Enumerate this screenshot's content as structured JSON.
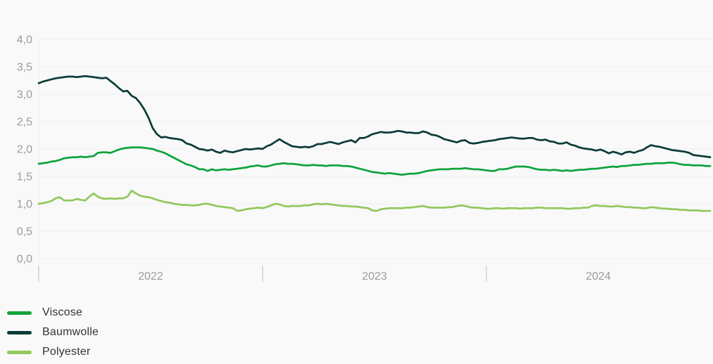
{
  "chart": {
    "background": "#f9f9f9",
    "grid_color": "#eeeeee",
    "axis_line_color": "#ececec",
    "tick_color": "#bdbdbd",
    "axis_label_color": "#9b9b9b",
    "y_tick_labels": [
      "4,0",
      "3,5",
      "3,0",
      "2,5",
      "2,0",
      "1,5",
      "1,0",
      "0,5",
      "0,0"
    ],
    "x_tick_labels": [
      "2022",
      "2023",
      "2024"
    ]
  },
  "legend": {
    "items": [
      {
        "label": "Viscose",
        "color": "#10a33c"
      },
      {
        "label": "Baumwolle",
        "color": "#0c3c38"
      },
      {
        "label": "Polyester",
        "color": "#92c85e"
      }
    ]
  },
  "chart_data": {
    "type": "line",
    "title": "",
    "xlabel": "",
    "ylabel": "",
    "ylim": [
      0.0,
      4.0
    ],
    "y_step": 0.5,
    "x_range": [
      2022.0,
      2025.0
    ],
    "x_tick_positions": [
      2022,
      2023,
      2024
    ],
    "x_tick_label_alignment": "centered-within-year",
    "x_sampling": "values evenly spaced over x_range",
    "grid": "horizontal-only",
    "legend_position": "bottom-left",
    "series": [
      {
        "name": "Viscose",
        "color": "#10a33c",
        "values": [
          1.73,
          1.74,
          1.75,
          1.77,
          1.78,
          1.8,
          1.83,
          1.84,
          1.85,
          1.85,
          1.86,
          1.85,
          1.86,
          1.87,
          1.93,
          1.94,
          1.94,
          1.93,
          1.96,
          1.99,
          2.01,
          2.02,
          2.03,
          2.03,
          2.03,
          2.02,
          2.01,
          2.0,
          1.97,
          1.95,
          1.92,
          1.88,
          1.84,
          1.8,
          1.76,
          1.72,
          1.7,
          1.67,
          1.63,
          1.63,
          1.6,
          1.63,
          1.61,
          1.62,
          1.63,
          1.62,
          1.63,
          1.64,
          1.65,
          1.66,
          1.68,
          1.69,
          1.7,
          1.68,
          1.68,
          1.7,
          1.72,
          1.73,
          1.74,
          1.73,
          1.73,
          1.72,
          1.71,
          1.7,
          1.7,
          1.71,
          1.7,
          1.7,
          1.69,
          1.7,
          1.7,
          1.7,
          1.69,
          1.69,
          1.68,
          1.66,
          1.64,
          1.62,
          1.6,
          1.58,
          1.57,
          1.56,
          1.55,
          1.56,
          1.55,
          1.54,
          1.53,
          1.54,
          1.55,
          1.55,
          1.56,
          1.58,
          1.6,
          1.61,
          1.62,
          1.63,
          1.63,
          1.63,
          1.64,
          1.64,
          1.64,
          1.65,
          1.64,
          1.63,
          1.63,
          1.62,
          1.61,
          1.6,
          1.6,
          1.63,
          1.63,
          1.64,
          1.66,
          1.68,
          1.68,
          1.68,
          1.67,
          1.65,
          1.63,
          1.62,
          1.62,
          1.61,
          1.62,
          1.61,
          1.6,
          1.61,
          1.6,
          1.61,
          1.62,
          1.62,
          1.63,
          1.64,
          1.64,
          1.65,
          1.66,
          1.67,
          1.68,
          1.67,
          1.69,
          1.69,
          1.7,
          1.71,
          1.71,
          1.72,
          1.73,
          1.73,
          1.74,
          1.74,
          1.74,
          1.75,
          1.75,
          1.74,
          1.72,
          1.71,
          1.71,
          1.7,
          1.7,
          1.7,
          1.69,
          1.69
        ]
      },
      {
        "name": "Baumwolle",
        "color": "#0c3c38",
        "values": [
          3.2,
          3.23,
          3.25,
          3.27,
          3.29,
          3.3,
          3.31,
          3.32,
          3.32,
          3.31,
          3.32,
          3.33,
          3.32,
          3.31,
          3.3,
          3.29,
          3.3,
          3.24,
          3.18,
          3.11,
          3.05,
          3.06,
          2.97,
          2.93,
          2.84,
          2.72,
          2.57,
          2.38,
          2.27,
          2.21,
          2.22,
          2.2,
          2.19,
          2.18,
          2.16,
          2.1,
          2.08,
          2.04,
          2.0,
          1.99,
          1.97,
          1.99,
          1.95,
          1.93,
          1.97,
          1.95,
          1.94,
          1.96,
          1.98,
          2.0,
          1.99,
          2.0,
          2.01,
          2.0,
          2.05,
          2.08,
          2.13,
          2.18,
          2.13,
          2.09,
          2.05,
          2.04,
          2.03,
          2.04,
          2.03,
          2.05,
          2.09,
          2.09,
          2.11,
          2.13,
          2.11,
          2.09,
          2.12,
          2.14,
          2.16,
          2.12,
          2.2,
          2.2,
          2.23,
          2.27,
          2.29,
          2.31,
          2.3,
          2.3,
          2.31,
          2.33,
          2.32,
          2.3,
          2.3,
          2.29,
          2.29,
          2.32,
          2.3,
          2.26,
          2.25,
          2.22,
          2.18,
          2.16,
          2.14,
          2.12,
          2.15,
          2.16,
          2.11,
          2.1,
          2.11,
          2.13,
          2.14,
          2.15,
          2.16,
          2.18,
          2.19,
          2.2,
          2.21,
          2.2,
          2.19,
          2.19,
          2.2,
          2.2,
          2.17,
          2.16,
          2.17,
          2.14,
          2.13,
          2.1,
          2.1,
          2.12,
          2.08,
          2.06,
          2.03,
          2.01,
          2.0,
          1.99,
          1.97,
          1.99,
          1.96,
          1.92,
          1.95,
          1.93,
          1.9,
          1.94,
          1.95,
          1.93,
          1.96,
          1.98,
          2.03,
          2.07,
          2.05,
          2.04,
          2.02,
          2.0,
          1.98,
          1.97,
          1.96,
          1.95,
          1.93,
          1.89,
          1.88,
          1.87,
          1.86,
          1.85
        ]
      },
      {
        "name": "Polyester",
        "color": "#92c85e",
        "values": [
          1.0,
          1.01,
          1.03,
          1.05,
          1.1,
          1.12,
          1.06,
          1.06,
          1.06,
          1.09,
          1.07,
          1.06,
          1.13,
          1.19,
          1.13,
          1.1,
          1.09,
          1.1,
          1.09,
          1.1,
          1.1,
          1.13,
          1.24,
          1.19,
          1.15,
          1.13,
          1.12,
          1.1,
          1.07,
          1.05,
          1.03,
          1.02,
          1.0,
          0.99,
          0.98,
          0.98,
          0.97,
          0.97,
          0.98,
          1.0,
          1.0,
          0.98,
          0.96,
          0.95,
          0.94,
          0.93,
          0.92,
          0.87,
          0.88,
          0.9,
          0.91,
          0.92,
          0.93,
          0.92,
          0.94,
          0.97,
          1.0,
          0.99,
          0.96,
          0.95,
          0.96,
          0.96,
          0.96,
          0.97,
          0.97,
          0.99,
          1.0,
          0.99,
          1.0,
          0.99,
          0.98,
          0.97,
          0.96,
          0.96,
          0.95,
          0.95,
          0.94,
          0.93,
          0.92,
          0.88,
          0.87,
          0.9,
          0.91,
          0.92,
          0.92,
          0.92,
          0.92,
          0.93,
          0.93,
          0.94,
          0.95,
          0.96,
          0.94,
          0.93,
          0.93,
          0.93,
          0.93,
          0.94,
          0.94,
          0.96,
          0.97,
          0.96,
          0.94,
          0.93,
          0.93,
          0.92,
          0.91,
          0.91,
          0.92,
          0.92,
          0.91,
          0.92,
          0.92,
          0.92,
          0.91,
          0.92,
          0.92,
          0.92,
          0.93,
          0.93,
          0.92,
          0.92,
          0.92,
          0.92,
          0.92,
          0.91,
          0.91,
          0.92,
          0.92,
          0.93,
          0.93,
          0.96,
          0.97,
          0.96,
          0.96,
          0.95,
          0.95,
          0.96,
          0.95,
          0.94,
          0.94,
          0.93,
          0.93,
          0.92,
          0.92,
          0.94,
          0.93,
          0.92,
          0.91,
          0.91,
          0.9,
          0.9,
          0.89,
          0.89,
          0.88,
          0.88,
          0.88,
          0.87,
          0.87,
          0.87
        ]
      }
    ]
  }
}
